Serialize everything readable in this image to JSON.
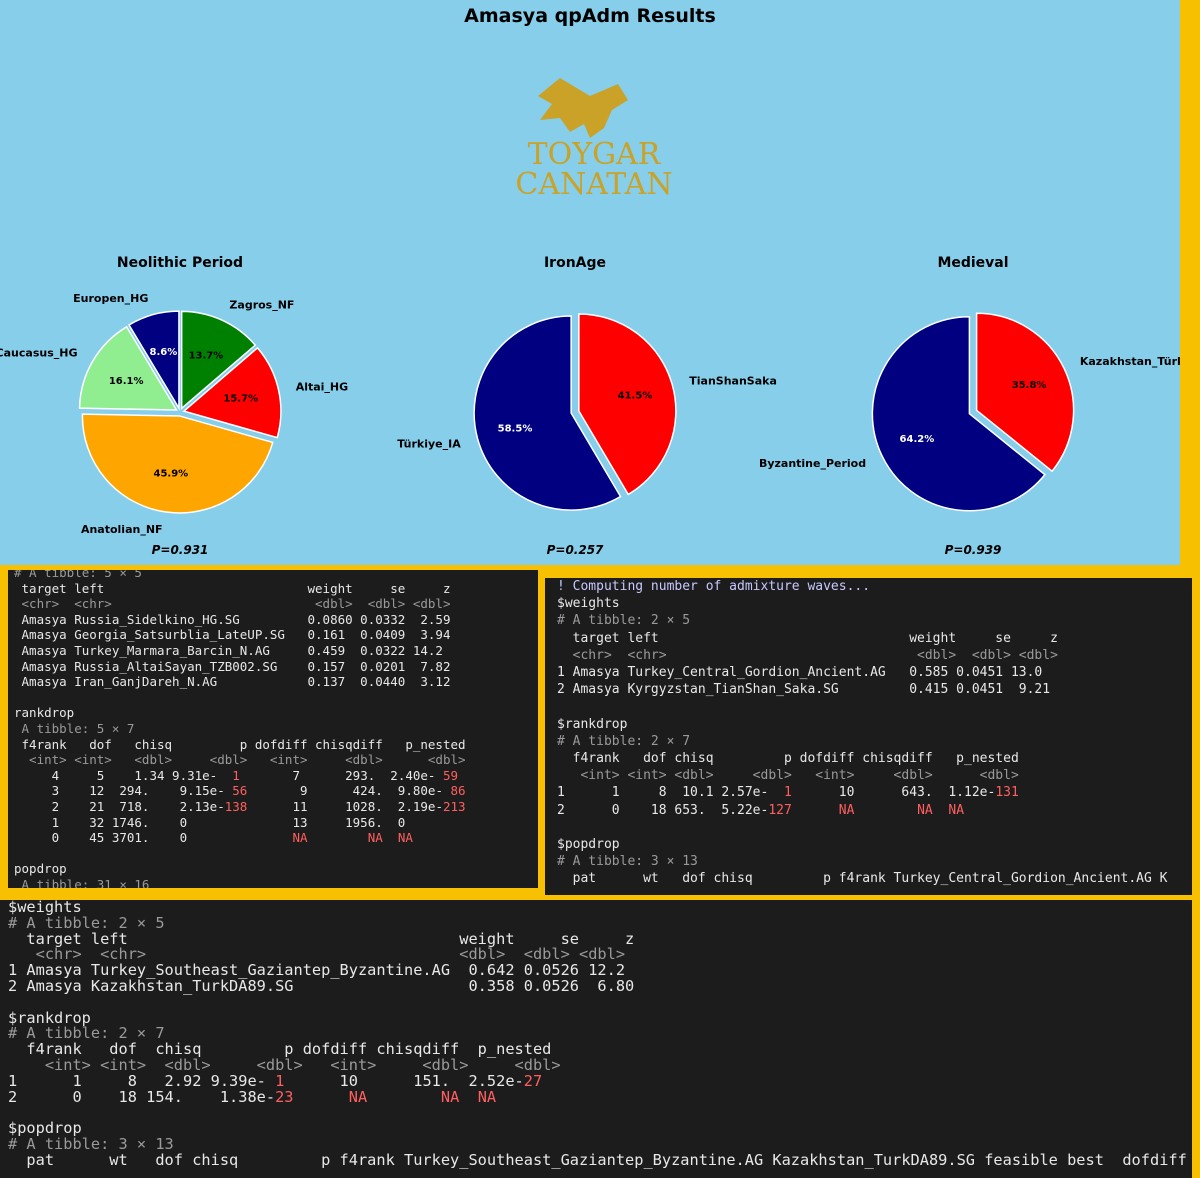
{
  "title": "Amasya qpAdm Results",
  "logo": [
    "TOYGAR",
    "CANATAN"
  ],
  "chart_data": [
    {
      "type": "pie",
      "title": "Neolithic Period",
      "annotation": "P=0.931",
      "categories": [
        "Zagros_NF",
        "Altai_HG",
        "Anatolian_NF",
        "Caucasus_HG",
        "Europen_HG"
      ],
      "values": [
        13.7,
        15.7,
        45.9,
        16.1,
        8.6
      ],
      "value_labels": [
        "13.7%",
        "15.7%",
        "45.9%",
        "16.1%",
        "8.6%"
      ],
      "colors": [
        "#008000",
        "#ff0000",
        "#ffa500",
        "#90ee90",
        "#000080"
      ]
    },
    {
      "type": "pie",
      "title": "IronAge",
      "annotation": "P=0.257",
      "categories": [
        "TianShanSaka",
        "Türkiye_IA"
      ],
      "values": [
        41.5,
        58.5
      ],
      "value_labels": [
        "41.5%",
        "58.5%"
      ],
      "colors": [
        "#ff0000",
        "#000080"
      ]
    },
    {
      "type": "pie",
      "title": "Medieval",
      "annotation": "P=0.939",
      "categories": [
        "Kazakhstan_Türk",
        "Byzantine_Period"
      ],
      "values": [
        35.8,
        64.2
      ],
      "value_labels": [
        "35.8%",
        "64.2%"
      ],
      "colors": [
        "#ff0000",
        "#000080"
      ]
    }
  ],
  "consoles": [
    {
      "lines": [
        [
          {
            "text": "# A tibble: 5 × 5",
            "color": "#9a9a9a"
          }
        ],
        " target left                           weight     se     z",
        [
          {
            "text": " <chr>  <chr>                           <dbl>  <dbl> <dbl>",
            "color": "#9a9a9a"
          }
        ],
        " Amasya Russia_Sidelkino_HG.SG         0.0860 0.0332  2.59",
        " Amasya Georgia_Satsurblia_LateUP.SG   0.161  0.0409  3.94",
        " Amasya Turkey_Marmara_Barcin_N.AG     0.459  0.0322 14.2",
        " Amasya Russia_AltaiSayan_TZB002.SG    0.157  0.0201  7.82",
        " Amasya Iran_GanjDareh_N.AG            0.137  0.0440  3.12",
        " ",
        "rankdrop",
        [
          {
            "text": " A tibble: 5 × 7",
            "color": "#9a9a9a"
          }
        ],
        " f4rank   dof   chisq         p dofdiff chisqdiff   p_nested",
        [
          {
            "text": "  <int> <int>   <dbl>     <dbl>   <int>     <dbl>      <dbl>",
            "color": "#9a9a9a"
          }
        ],
        [
          "     4     5    1.34 9.31e-",
          {
            "text": "  1",
            "color": "#ff5f5f"
          },
          "       7      293.  2.40e-",
          {
            "text": " 59",
            "color": "#ff5f5f"
          }
        ],
        [
          "     3    12  294.    9.15e-",
          {
            "text": " 56",
            "color": "#ff5f5f"
          },
          "       9      424.  9.80e-",
          {
            "text": " 86",
            "color": "#ff5f5f"
          }
        ],
        [
          "     2    21  718.    2.13e-",
          {
            "text": "138",
            "color": "#ff5f5f"
          },
          "      11     1028.  2.19e-",
          {
            "text": "213",
            "color": "#ff5f5f"
          }
        ],
        "     1    32 1746.    0              13     1956.  0",
        [
          "     0    45 3701.    0              ",
          {
            "text": "NA",
            "color": "#ff5f5f"
          },
          "        ",
          {
            "text": "NA  NA",
            "color": "#ff5f5f"
          }
        ],
        " ",
        "popdrop",
        [
          {
            "text": " A tibble: 31 × 16",
            "color": "#9a9a9a"
          }
        ]
      ]
    },
    {
      "lines": [
        [
          {
            "text": "! Computing number of admixture waves...",
            "color": "#c8c8ff"
          }
        ],
        "$weights",
        [
          {
            "text": "# A tibble: 2 × 5",
            "color": "#9a9a9a"
          }
        ],
        "  target left                                weight     se     z",
        [
          {
            "text": "  <chr>  <chr>                                <dbl>  <dbl> <dbl>",
            "color": "#9a9a9a"
          }
        ],
        "1 Amasya Turkey_Central_Gordion_Ancient.AG   0.585 0.0451 13.0",
        "2 Amasya Kyrgyzstan_TianShan_Saka.SG         0.415 0.0451  9.21",
        " ",
        "$rankdrop",
        [
          {
            "text": "# A tibble: 2 × 7",
            "color": "#9a9a9a"
          }
        ],
        "  f4rank   dof chisq         p dofdiff chisqdiff   p_nested",
        [
          {
            "text": "   <int> <int> <dbl>     <dbl>   <int>     <dbl>      <dbl>",
            "color": "#9a9a9a"
          }
        ],
        [
          "1      1     8  10.1 2.57e-",
          {
            "text": "  1",
            "color": "#ff5f5f"
          },
          "      10      643.  1.12e-",
          {
            "text": "131",
            "color": "#ff5f5f"
          }
        ],
        [
          "2      0    18 653.  5.22e-",
          {
            "text": "127",
            "color": "#ff5f5f"
          },
          "      ",
          {
            "text": "NA",
            "color": "#ff5f5f"
          },
          "        ",
          {
            "text": "NA  NA",
            "color": "#ff5f5f"
          }
        ],
        " ",
        "$popdrop",
        [
          {
            "text": "# A tibble: 3 × 13",
            "color": "#9a9a9a"
          }
        ],
        "  pat      wt   dof chisq         p f4rank Turkey_Central_Gordion_Ancient.AG K"
      ]
    },
    {
      "lines": [
        "$weights",
        [
          {
            "text": "# A tibble: 2 × 5",
            "color": "#9a9a9a"
          }
        ],
        "  target left                                    weight     se     z",
        [
          {
            "text": "   <chr>  <chr>                                  <dbl>  <dbl> <dbl>",
            "color": "#9a9a9a"
          }
        ],
        "1 Amasya Turkey_Southeast_Gaziantep_Byzantine.AG  0.642 0.0526 12.2",
        "2 Amasya Kazakhstan_TurkDA89.SG                   0.358 0.0526  6.80",
        " ",
        "$rankdrop",
        [
          {
            "text": "# A tibble: 2 × 7",
            "color": "#9a9a9a"
          }
        ],
        "  f4rank   dof  chisq         p dofdiff chisqdiff  p_nested",
        [
          {
            "text": "    <int> <int>  <dbl>     <dbl>   <int>     <dbl>     <dbl>",
            "color": "#9a9a9a"
          }
        ],
        [
          "1      1     8   2.92 9.39e-",
          {
            "text": " 1",
            "color": "#ff5f5f"
          },
          "      10      151.  2.52e-",
          {
            "text": "27",
            "color": "#ff5f5f"
          }
        ],
        [
          "2      0    18 154.    1.38e-",
          {
            "text": "23",
            "color": "#ff5f5f"
          },
          "      ",
          {
            "text": "NA",
            "color": "#ff5f5f"
          },
          "        ",
          {
            "text": "NA  NA",
            "color": "#ff5f5f"
          }
        ],
        " ",
        "$popdrop",
        [
          {
            "text": "# A tibble: 3 × 13",
            "color": "#9a9a9a"
          }
        ],
        "  pat      wt   dof chisq         p f4rank Turkey_Southeast_Gaziantep_Byzantine.AG Kazakhstan_TurkDA89.SG feasible best  dofdiff"
      ]
    }
  ]
}
